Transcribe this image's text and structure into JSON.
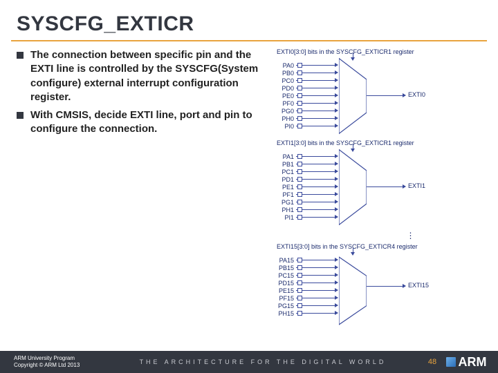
{
  "title": "SYSCFG_EXTICR",
  "bullets": [
    "The connection between specific pin and the EXTI line is controlled by the SYSCFG(System configure) external interrupt configuration register.",
    "With CMSIS, decide EXTI line, port and pin to configure the connection."
  ],
  "diagrams": [
    {
      "caption": "EXTI0[3:0] bits in the SYSCFG_EXTICR1 register",
      "pins": [
        "PA0",
        "PB0",
        "PC0",
        "PD0",
        "PE0",
        "PF0",
        "PG0",
        "PH0",
        "PI0"
      ],
      "output": "EXTI0"
    },
    {
      "caption": "EXTI1[3:0] bits in the SYSCFG_EXTICR1 register",
      "pins": [
        "PA1",
        "PB1",
        "PC1",
        "PD1",
        "PE1",
        "PF1",
        "PG1",
        "PH1",
        "PI1"
      ],
      "output": "EXTI1"
    },
    {
      "caption": "EXTI15[3:0] bits in the SYSCFG_EXTICR4 register",
      "pins": [
        "PA15",
        "PB15",
        "PC15",
        "PD15",
        "PE15",
        "PF15",
        "PG15",
        "PH15"
      ],
      "output": "EXTI15"
    }
  ],
  "footer": {
    "program": "ARM University Program",
    "copyright": "Copyright © ARM Ltd 2013",
    "tagline": "THE ARCHITECTURE FOR THE DIGITAL WORLD",
    "page": "48",
    "logo": "ARM"
  },
  "colors": {
    "accent": "#e8a33d",
    "diagram": "#3a4a9c",
    "footer_bg": "#333740"
  }
}
